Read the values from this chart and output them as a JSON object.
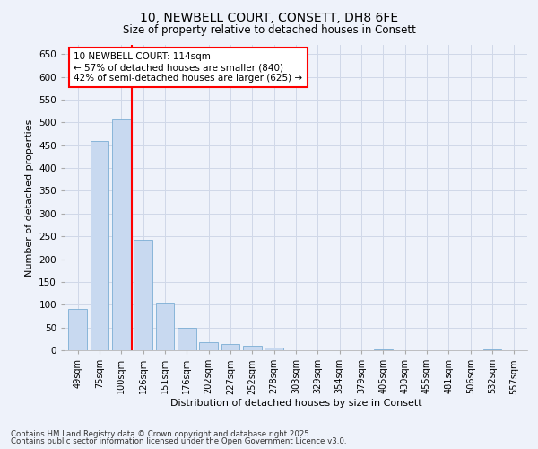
{
  "title1": "10, NEWBELL COURT, CONSETT, DH8 6FE",
  "title2": "Size of property relative to detached houses in Consett",
  "xlabel": "Distribution of detached houses by size in Consett",
  "ylabel": "Number of detached properties",
  "categories": [
    "49sqm",
    "75sqm",
    "100sqm",
    "126sqm",
    "151sqm",
    "176sqm",
    "202sqm",
    "227sqm",
    "252sqm",
    "278sqm",
    "303sqm",
    "329sqm",
    "354sqm",
    "379sqm",
    "405sqm",
    "430sqm",
    "455sqm",
    "481sqm",
    "506sqm",
    "532sqm",
    "557sqm"
  ],
  "values": [
    90,
    460,
    507,
    242,
    104,
    49,
    18,
    14,
    9,
    5,
    0,
    0,
    0,
    0,
    2,
    0,
    0,
    0,
    0,
    1,
    0
  ],
  "bar_color": "#c8d9f0",
  "bar_edge_color": "#7baed4",
  "vline_color": "red",
  "annotation_text": "10 NEWBELL COURT: 114sqm\n← 57% of detached houses are smaller (840)\n42% of semi-detached houses are larger (625) →",
  "annotation_box_color": "white",
  "annotation_box_edge": "red",
  "ylim": [
    0,
    670
  ],
  "yticks": [
    0,
    50,
    100,
    150,
    200,
    250,
    300,
    350,
    400,
    450,
    500,
    550,
    600,
    650
  ],
  "footer1": "Contains HM Land Registry data © Crown copyright and database right 2025.",
  "footer2": "Contains public sector information licensed under the Open Government Licence v3.0.",
  "bg_color": "#eef2fa",
  "grid_color": "#d0d8e8"
}
